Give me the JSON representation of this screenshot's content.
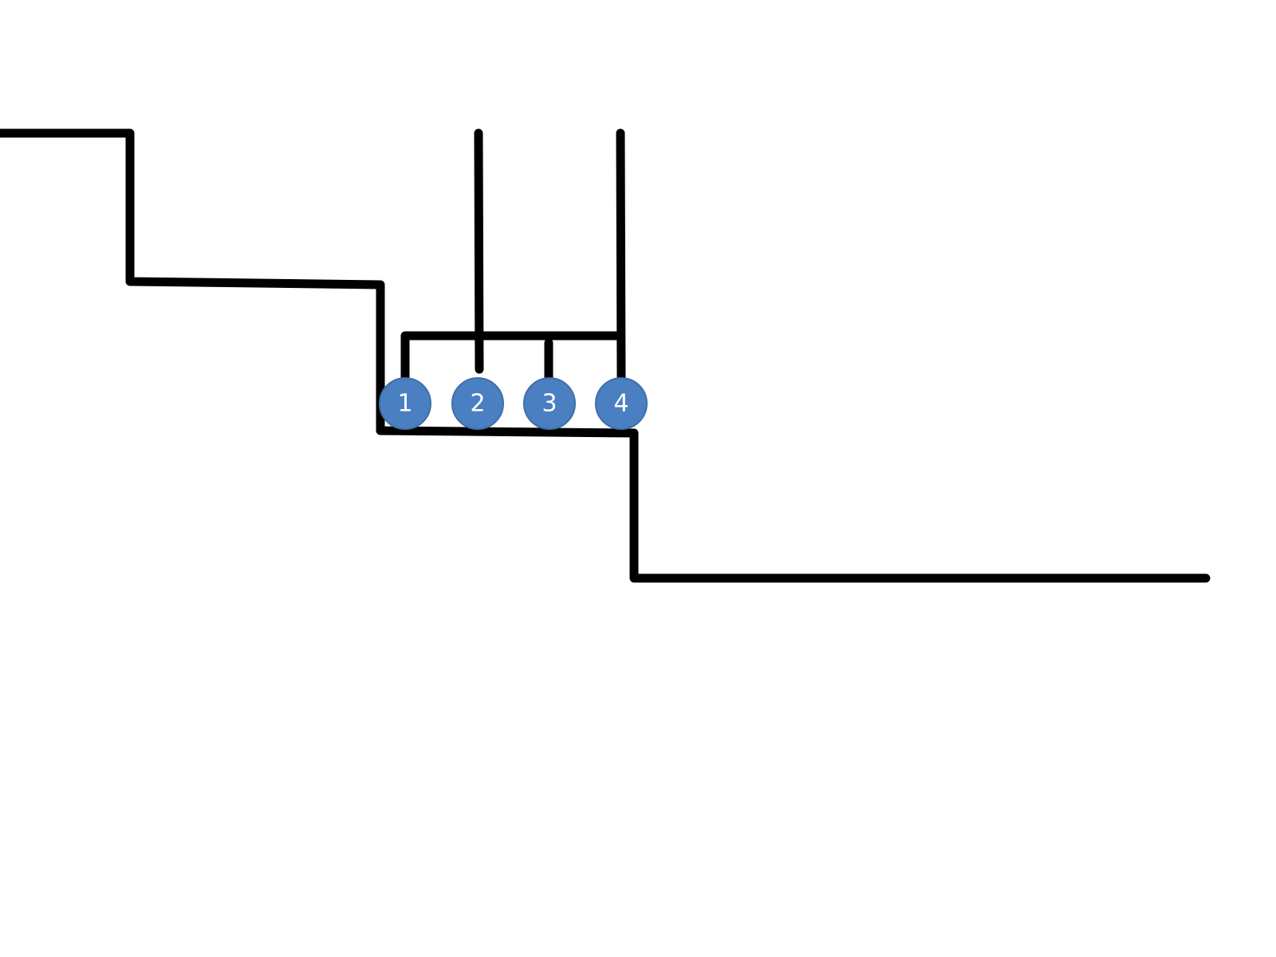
{
  "diagram": {
    "colors": {
      "line": "#000000",
      "node_fill": "#4a7fc1",
      "node_text": "#ffffff",
      "background": "#ffffff"
    },
    "nodes": [
      {
        "label": "1"
      },
      {
        "label": "2"
      },
      {
        "label": "3"
      },
      {
        "label": "4"
      }
    ]
  }
}
